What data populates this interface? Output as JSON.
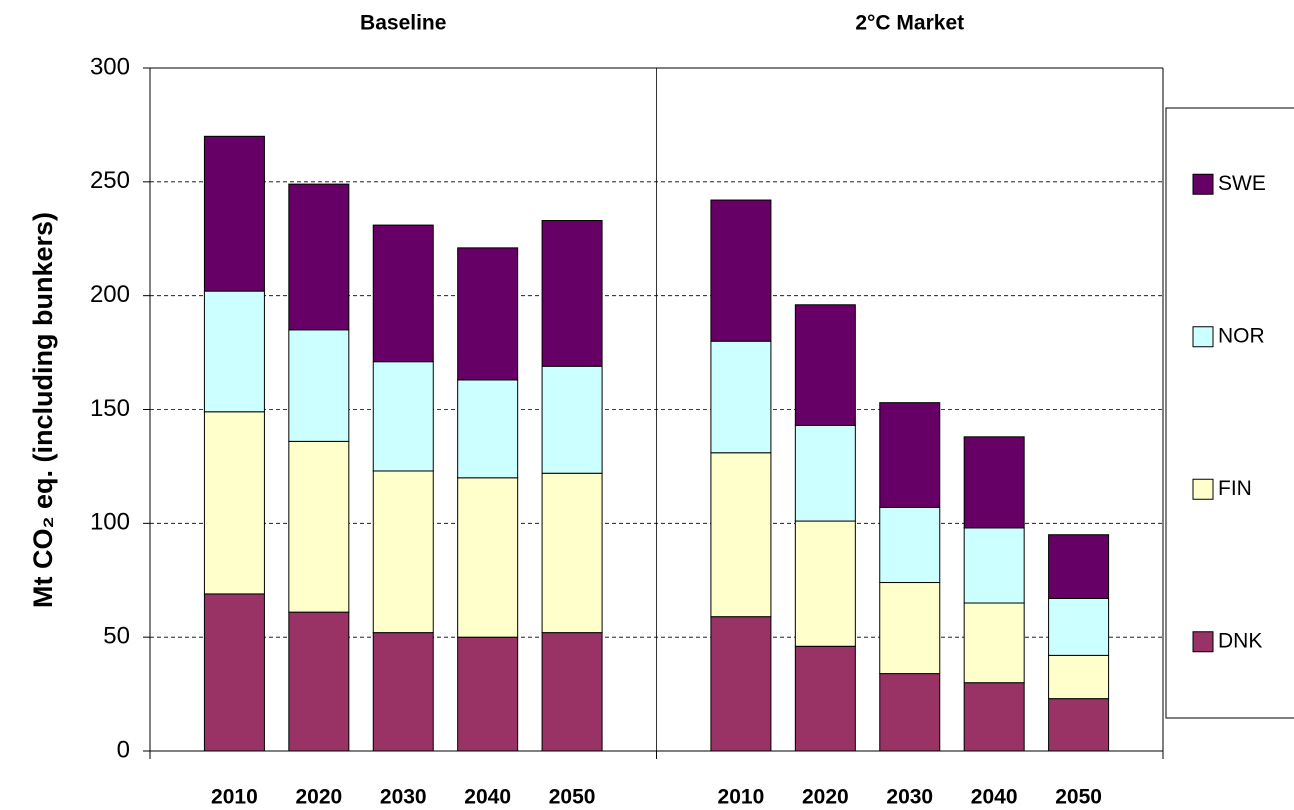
{
  "chart_data": {
    "type": "stacked_bar",
    "groups": [
      "Baseline",
      "2°C Market"
    ],
    "categories": [
      "2010",
      "2020",
      "2030",
      "2040",
      "2050"
    ],
    "y_label": "Mt CO₂ eq. (including bunkers)",
    "ylim": [
      0,
      300
    ],
    "yticks": [
      0,
      50,
      100,
      150,
      200,
      250,
      300
    ],
    "grid": true,
    "legend": "right",
    "series": [
      {
        "name": "DNK",
        "color": "#993366",
        "values": [
          [
            69,
            61,
            52,
            50,
            52
          ],
          [
            59,
            46,
            34,
            30,
            23
          ]
        ]
      },
      {
        "name": "FIN",
        "color": "#ffffcc",
        "values": [
          [
            80,
            75,
            71,
            70,
            70
          ],
          [
            72,
            55,
            40,
            35,
            19
          ]
        ]
      },
      {
        "name": "NOR",
        "color": "#ccffff",
        "values": [
          [
            53,
            49,
            48,
            43,
            47
          ],
          [
            49,
            42,
            33,
            33,
            25
          ]
        ]
      },
      {
        "name": "SWE",
        "color": "#660066",
        "values": [
          [
            68,
            64,
            60,
            58,
            64
          ],
          [
            62,
            53,
            46,
            40,
            28
          ]
        ]
      }
    ]
  }
}
